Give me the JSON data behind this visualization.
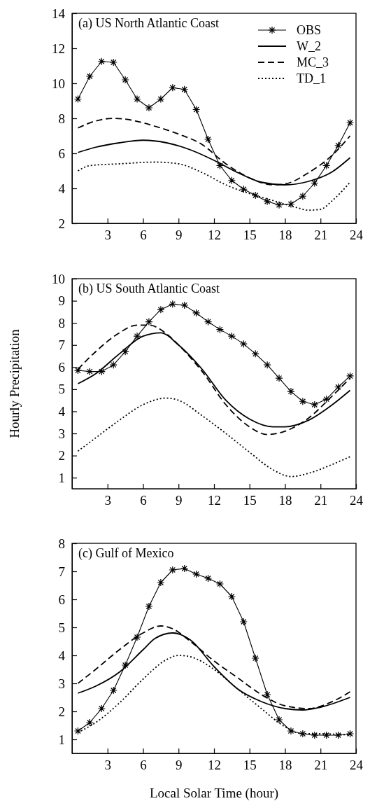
{
  "chart_data": [
    {
      "type": "line",
      "title": "(a) US North Atlantic Coast",
      "xlim": [
        0,
        24
      ],
      "xticks": [
        3,
        6,
        9,
        12,
        15,
        18,
        21,
        24
      ],
      "ylim": [
        2,
        14
      ],
      "yticks": [
        2,
        4,
        6,
        8,
        10,
        12,
        14
      ],
      "legend": "top right",
      "grid": false,
      "series": [
        {
          "name": "OBS",
          "color": "#000000",
          "line_style": "solid",
          "marker": "cross",
          "x": [
            0.5,
            1.5,
            2.5,
            3.5,
            4.5,
            5.5,
            6.5,
            7.5,
            8.5,
            9.5,
            10.5,
            11.5,
            12.5,
            13.5,
            14.5,
            15.5,
            16.5,
            17.5,
            18.5,
            19.5,
            20.5,
            21.5,
            22.5,
            23.5
          ],
          "values": [
            9.1,
            10.4,
            11.25,
            11.2,
            10.2,
            9.1,
            8.6,
            9.1,
            9.75,
            9.65,
            8.5,
            6.8,
            5.3,
            4.45,
            3.95,
            3.6,
            3.25,
            3.05,
            3.1,
            3.55,
            4.3,
            5.3,
            6.45,
            7.75
          ]
        },
        {
          "name": "W_2",
          "color": "#000000",
          "line_style": "solid",
          "marker": "none",
          "x": [
            0.5,
            2,
            4,
            6,
            8,
            10,
            12,
            14,
            16,
            18,
            20,
            22,
            23.5
          ],
          "values": [
            6.05,
            6.35,
            6.6,
            6.75,
            6.6,
            6.2,
            5.6,
            4.9,
            4.35,
            4.2,
            4.4,
            4.95,
            5.75
          ]
        },
        {
          "name": "MC_3",
          "color": "#000000",
          "line_style": "dashed",
          "marker": "none",
          "x": [
            0.5,
            2,
            3.5,
            5,
            7,
            9,
            11,
            13,
            15,
            17,
            18,
            20,
            22,
            23.5
          ],
          "values": [
            7.45,
            7.85,
            8.0,
            7.9,
            7.55,
            7.1,
            6.5,
            5.4,
            4.6,
            4.2,
            4.25,
            4.9,
            5.9,
            7.0
          ]
        },
        {
          "name": "TD_1",
          "color": "#000000",
          "line_style": "dotted",
          "marker": "none",
          "x": [
            0.5,
            1.5,
            4,
            7,
            9,
            11,
            13,
            15,
            17,
            19,
            20,
            21,
            22,
            23.5
          ],
          "values": [
            5.0,
            5.3,
            5.4,
            5.5,
            5.4,
            4.9,
            4.2,
            3.7,
            3.3,
            2.9,
            2.75,
            2.8,
            3.3,
            4.35
          ]
        }
      ]
    },
    {
      "type": "line",
      "title": "(b) US South Atlantic Coast",
      "ylabel": "Hourly Precipitation",
      "xlim": [
        0,
        24
      ],
      "xticks": [
        3,
        6,
        9,
        12,
        15,
        18,
        21,
        24
      ],
      "ylim": [
        0.5,
        10
      ],
      "yticks": [
        1,
        2,
        3,
        4,
        5,
        6,
        7,
        8,
        9,
        10
      ],
      "grid": false,
      "series": [
        {
          "color": "#000000",
          "line_style": "solid",
          "marker": "cross",
          "x": [
            0.5,
            1.5,
            2.5,
            3.5,
            4.5,
            5.5,
            6.5,
            7.5,
            8.5,
            9.5,
            10.5,
            11.5,
            12.5,
            13.5,
            14.5,
            15.5,
            16.5,
            17.5,
            18.5,
            19.5,
            20.5,
            21.5,
            22.5,
            23.5
          ],
          "values": [
            5.85,
            5.8,
            5.8,
            6.1,
            6.7,
            7.4,
            8.05,
            8.6,
            8.85,
            8.8,
            8.45,
            8.05,
            7.7,
            7.4,
            7.05,
            6.6,
            6.1,
            5.5,
            4.9,
            4.45,
            4.3,
            4.55,
            5.1,
            5.6
          ]
        },
        {
          "color": "#000000",
          "line_style": "solid",
          "marker": "none",
          "x": [
            0.5,
            2,
            4,
            6,
            7.5,
            9,
            11,
            13,
            15,
            17,
            18,
            20,
            22,
            23.5
          ],
          "values": [
            5.25,
            5.7,
            6.6,
            7.4,
            7.55,
            7.0,
            5.9,
            4.5,
            3.65,
            3.3,
            3.3,
            3.6,
            4.3,
            4.95
          ]
        },
        {
          "color": "#000000",
          "line_style": "dashed",
          "marker": "none",
          "x": [
            0.5,
            2,
            4,
            5.5,
            6.5,
            8,
            9,
            11,
            13,
            15,
            16.5,
            18,
            20,
            22,
            23.5
          ],
          "values": [
            5.9,
            6.7,
            7.55,
            7.9,
            7.9,
            7.5,
            7.0,
            5.8,
            4.3,
            3.3,
            2.95,
            3.1,
            3.7,
            4.7,
            5.5
          ]
        },
        {
          "color": "#000000",
          "line_style": "dotted",
          "marker": "none",
          "x": [
            0.5,
            2,
            4,
            6,
            8,
            9,
            11,
            13,
            15,
            17,
            18.5,
            20,
            22,
            23.5
          ],
          "values": [
            2.2,
            2.8,
            3.6,
            4.3,
            4.6,
            4.5,
            3.8,
            3.0,
            2.15,
            1.35,
            1.05,
            1.2,
            1.6,
            1.95
          ]
        }
      ]
    },
    {
      "type": "line",
      "title": "(c) Gulf of Mexico",
      "xlabel": "Local Solar Time (hour)",
      "xlim": [
        0,
        24
      ],
      "xticks": [
        3,
        6,
        9,
        12,
        15,
        18,
        21,
        24
      ],
      "ylim": [
        0.5,
        8
      ],
      "yticks": [
        1,
        2,
        3,
        4,
        5,
        6,
        7,
        8
      ],
      "grid": false,
      "series": [
        {
          "color": "#000000",
          "line_style": "solid",
          "marker": "cross",
          "x": [
            0.5,
            1.5,
            2.5,
            3.5,
            4.5,
            5.5,
            6.5,
            7.5,
            8.5,
            9.5,
            10.5,
            11.5,
            12.5,
            13.5,
            14.5,
            15.5,
            16.5,
            17.5,
            18.5,
            19.5,
            20.5,
            21.5,
            22.5,
            23.5
          ],
          "values": [
            1.3,
            1.6,
            2.1,
            2.75,
            3.65,
            4.65,
            5.75,
            6.6,
            7.05,
            7.1,
            6.9,
            6.75,
            6.55,
            6.1,
            5.2,
            3.9,
            2.6,
            1.7,
            1.3,
            1.2,
            1.15,
            1.15,
            1.15,
            1.2
          ]
        },
        {
          "color": "#000000",
          "line_style": "solid",
          "marker": "none",
          "x": [
            0.5,
            2,
            4,
            6,
            7,
            8.5,
            10,
            12,
            14,
            16,
            18,
            19.5,
            21,
            23.5
          ],
          "values": [
            2.65,
            2.9,
            3.4,
            4.2,
            4.6,
            4.8,
            4.55,
            3.6,
            2.8,
            2.35,
            2.1,
            2.05,
            2.15,
            2.5
          ]
        },
        {
          "color": "#000000",
          "line_style": "dashed",
          "marker": "none",
          "x": [
            0.5,
            2,
            4,
            6,
            7.5,
            8.5,
            10,
            12,
            14,
            16,
            18,
            20,
            22,
            23.5
          ],
          "values": [
            3.0,
            3.5,
            4.2,
            4.8,
            5.05,
            4.95,
            4.5,
            3.8,
            3.2,
            2.6,
            2.2,
            2.1,
            2.35,
            2.7
          ]
        },
        {
          "color": "#000000",
          "line_style": "dotted",
          "marker": "none",
          "x": [
            0.5,
            2,
            4,
            6,
            8,
            9,
            10,
            12,
            14,
            16,
            18,
            19.5,
            21,
            23.5
          ],
          "values": [
            1.25,
            1.6,
            2.3,
            3.15,
            3.85,
            4.0,
            3.95,
            3.5,
            2.8,
            2.1,
            1.45,
            1.2,
            1.2,
            1.15
          ]
        }
      ]
    }
  ]
}
